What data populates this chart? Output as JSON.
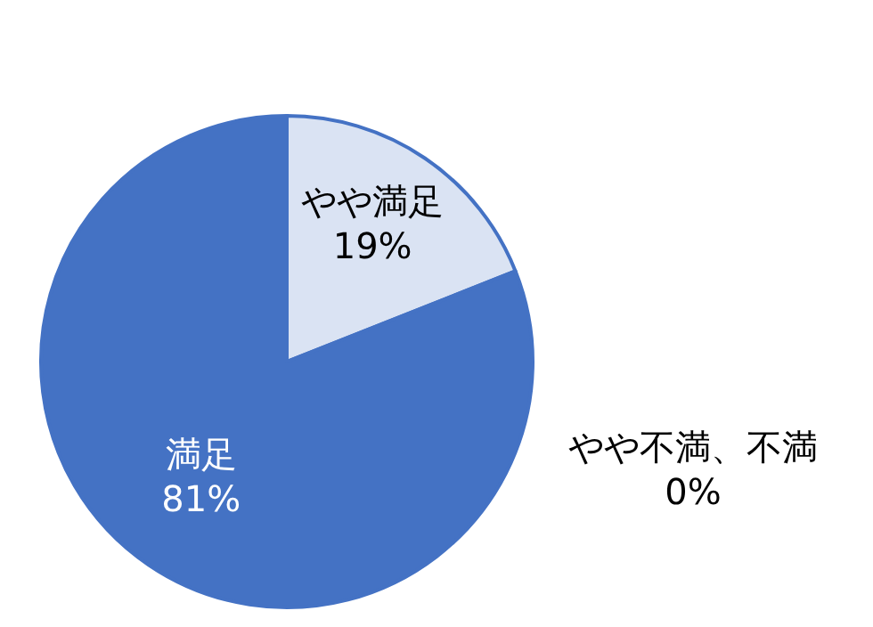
{
  "chart_data": {
    "type": "pie",
    "categories": [
      "やや満足",
      "やや不満、不満",
      "満足"
    ],
    "values": [
      19,
      0,
      81
    ],
    "colors": [
      "#dae3f3",
      "#a5a5a5",
      "#4472c4"
    ],
    "value_labels": [
      "19%",
      "0%",
      "81%"
    ]
  }
}
